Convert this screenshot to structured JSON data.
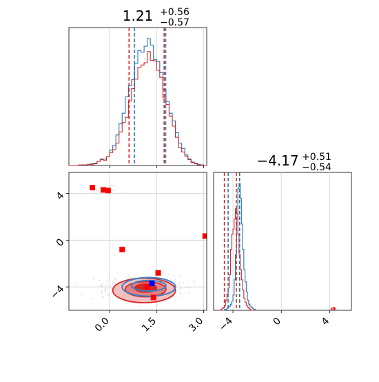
{
  "chart_data": [
    {
      "type": "histogram",
      "panel": "top-left marginal",
      "title_value": "1.21",
      "title_plus": "+0.56",
      "title_minus": "−0.57",
      "xlim": [
        -1.3,
        3.1
      ],
      "colors": {
        "blue": "#1f77b4",
        "red": "#d62728"
      },
      "bin_start": -1.3,
      "bin_width": 0.1,
      "series": [
        {
          "name": "blue",
          "counts": [
            0,
            0,
            0,
            0,
            1,
            1,
            2,
            3,
            4,
            7,
            10,
            11,
            15,
            26,
            34,
            52,
            71,
            89,
            117,
            136,
            146,
            174,
            196,
            193,
            203,
            216,
            205,
            180,
            177,
            158,
            129,
            109,
            89,
            76,
            56,
            38,
            29,
            18,
            10,
            6,
            4,
            2,
            1,
            0
          ]
        },
        {
          "name": "red",
          "counts": [
            0,
            0,
            0,
            1,
            1,
            1,
            2,
            2,
            3,
            7,
            11,
            9,
            15,
            22,
            27,
            38,
            57,
            73,
            82,
            110,
            131,
            147,
            167,
            171,
            175,
            194,
            179,
            178,
            162,
            150,
            115,
            104,
            84,
            67,
            48,
            30,
            23,
            16,
            11,
            5,
            3,
            1,
            0,
            0
          ]
        }
      ],
      "vlines": [
        {
          "color": "red",
          "x": 0.62
        },
        {
          "color": "blue",
          "x": 0.79
        },
        {
          "color": "red",
          "x": 1.74
        },
        {
          "color": "blue",
          "x": 1.79
        }
      ]
    },
    {
      "type": "contour",
      "panel": "bottom-left 2D",
      "xlim": [
        -1.3,
        3.1
      ],
      "ylim": [
        -6.0,
        5.8
      ],
      "xticks": [
        {
          "v": 0.0,
          "label": "0.0"
        },
        {
          "v": 1.5,
          "label": "1.5"
        },
        {
          "v": 3.0,
          "label": "3.0"
        }
      ],
      "yticks": [
        {
          "v": 4,
          "label": "4"
        },
        {
          "v": 0,
          "label": "0"
        },
        {
          "v": -4,
          "label": "−4"
        }
      ],
      "red_levels": [
        {
          "cx": 1.15,
          "cy": -4.1,
          "rx": 0.35,
          "ry": 0.35,
          "fill": "#d62728"
        },
        {
          "cx": 1.15,
          "cy": -4.2,
          "rx": 0.65,
          "ry": 0.65,
          "fill": "#e57f80"
        },
        {
          "cx": 1.1,
          "cy": -4.3,
          "rx": 1.0,
          "ry": 1.05,
          "fill": "#f2c0c0"
        }
      ],
      "blue_levels": [
        {
          "cx": 1.25,
          "cy": -3.9,
          "rx": 0.55,
          "ry": 0.45
        },
        {
          "cx": 1.25,
          "cy": -4.0,
          "rx": 0.85,
          "ry": 0.8
        }
      ],
      "red_points": [
        [
          -0.55,
          4.5
        ],
        [
          -0.2,
          4.3
        ],
        [
          -0.05,
          4.25
        ],
        [
          0.4,
          -0.8
        ],
        [
          3.05,
          0.35
        ],
        [
          1.55,
          -2.8
        ],
        [
          1.2,
          -4.0
        ],
        [
          1.4,
          -4.9
        ]
      ],
      "blue_points": [
        [
          1.35,
          -3.7
        ]
      ]
    },
    {
      "type": "histogram",
      "panel": "bottom-right marginal",
      "title_value": "−4.17",
      "title_plus": "+0.51",
      "title_minus": "−0.54",
      "xlim": [
        -5.6,
        5.8
      ],
      "xticks": [
        {
          "v": -4,
          "label": "−4"
        },
        {
          "v": 0,
          "label": "0"
        },
        {
          "v": 4,
          "label": "4"
        }
      ],
      "colors": {
        "blue": "#1f77b4",
        "red": "#d62728"
      },
      "bin_start": -5.2,
      "bin_width": 0.1,
      "series": [
        {
          "name": "blue",
          "counts": [
            0,
            0,
            0,
            0,
            0,
            1,
            1,
            2,
            3,
            4,
            6,
            9,
            15,
            30,
            55,
            90,
            120,
            125,
            110,
            85,
            60,
            40,
            28,
            18,
            10,
            6,
            4,
            3,
            2,
            1,
            1,
            0
          ]
        },
        {
          "name": "red",
          "counts": [
            0,
            0,
            1,
            2,
            3,
            5,
            10,
            16,
            22,
            35,
            60,
            75,
            80,
            90,
            100,
            95,
            75,
            55,
            40,
            30,
            20,
            12,
            8,
            5,
            3,
            2,
            1,
            0,
            0,
            0,
            0,
            0
          ]
        }
      ],
      "outlier_hist": [
        {
          "x": 4.1,
          "count": 2
        },
        {
          "x": 4.2,
          "count": 2
        },
        {
          "x": 4.3,
          "count": 3
        },
        {
          "x": 4.4,
          "count": 2
        }
      ],
      "vlines": [
        {
          "color": "red",
          "x": -4.71
        },
        {
          "color": "blue",
          "x": -4.4
        },
        {
          "color": "red",
          "x": -3.72
        },
        {
          "color": "blue",
          "x": -3.45
        }
      ]
    }
  ]
}
